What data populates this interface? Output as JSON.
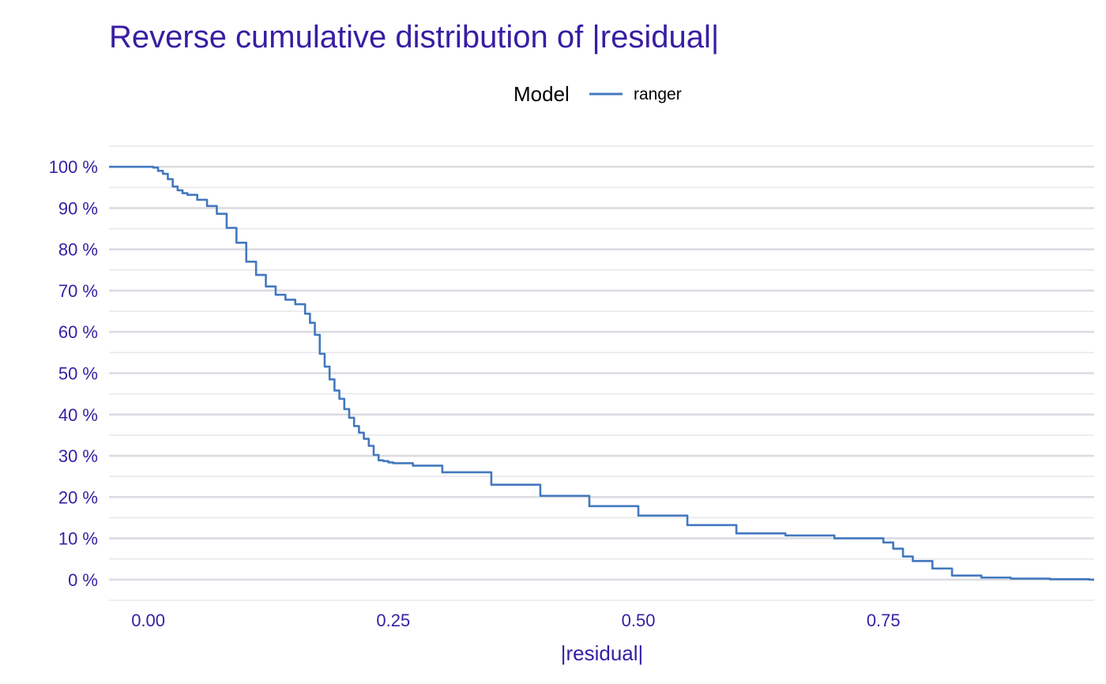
{
  "chart_data": {
    "type": "line",
    "title": "Reverse cumulative distribution of |residual|",
    "xlabel": "|residual|",
    "ylabel": "",
    "x_ticks": [
      0.0,
      0.25,
      0.5,
      0.75
    ],
    "x_tick_labels": [
      "0.00",
      "0.25",
      "0.50",
      "0.75"
    ],
    "y_ticks": [
      0,
      10,
      20,
      30,
      40,
      50,
      60,
      70,
      80,
      90,
      100
    ],
    "y_tick_labels": [
      "0 %",
      "10 %",
      "20 %",
      "30 %",
      "40 %",
      "50 %",
      "60 %",
      "70 %",
      "80 %",
      "90 %",
      "100 %"
    ],
    "xlim": [
      -0.04,
      0.965
    ],
    "ylim": [
      -5,
      105
    ],
    "grid": "horizontal",
    "legend": {
      "title": "Model",
      "position": "top",
      "entries": [
        "ranger"
      ]
    },
    "colors": {
      "title": "#371ea3",
      "ticks": "#371ea3",
      "line": "#4378bf",
      "grid": "#dcdce2"
    },
    "series": [
      {
        "name": "ranger",
        "x": [
          0.0,
          0.005,
          0.01,
          0.015,
          0.02,
          0.025,
          0.03,
          0.035,
          0.04,
          0.05,
          0.06,
          0.07,
          0.08,
          0.09,
          0.1,
          0.11,
          0.12,
          0.13,
          0.14,
          0.15,
          0.16,
          0.165,
          0.17,
          0.175,
          0.18,
          0.185,
          0.19,
          0.195,
          0.2,
          0.205,
          0.21,
          0.215,
          0.22,
          0.225,
          0.23,
          0.235,
          0.24,
          0.245,
          0.25,
          0.27,
          0.3,
          0.35,
          0.4,
          0.45,
          0.5,
          0.55,
          0.6,
          0.65,
          0.7,
          0.75,
          0.76,
          0.77,
          0.78,
          0.8,
          0.82,
          0.85,
          0.88,
          0.92,
          0.96
        ],
        "y": [
          100,
          99.8,
          99.0,
          98.3,
          97.0,
          95.2,
          94.3,
          93.6,
          93.2,
          92.0,
          90.5,
          88.6,
          85.2,
          81.6,
          77.0,
          73.8,
          71.0,
          69.0,
          67.8,
          66.7,
          64.4,
          62.2,
          59.3,
          54.7,
          51.6,
          48.5,
          45.8,
          43.8,
          41.3,
          39.2,
          37.2,
          35.6,
          34.1,
          32.4,
          30.2,
          28.9,
          28.7,
          28.4,
          28.2,
          27.6,
          26.0,
          23.0,
          20.3,
          17.8,
          15.5,
          13.2,
          11.2,
          10.7,
          10.0,
          9.0,
          7.5,
          5.6,
          4.5,
          2.7,
          1.0,
          0.5,
          0.25,
          0.1,
          0.0
        ]
      }
    ]
  }
}
